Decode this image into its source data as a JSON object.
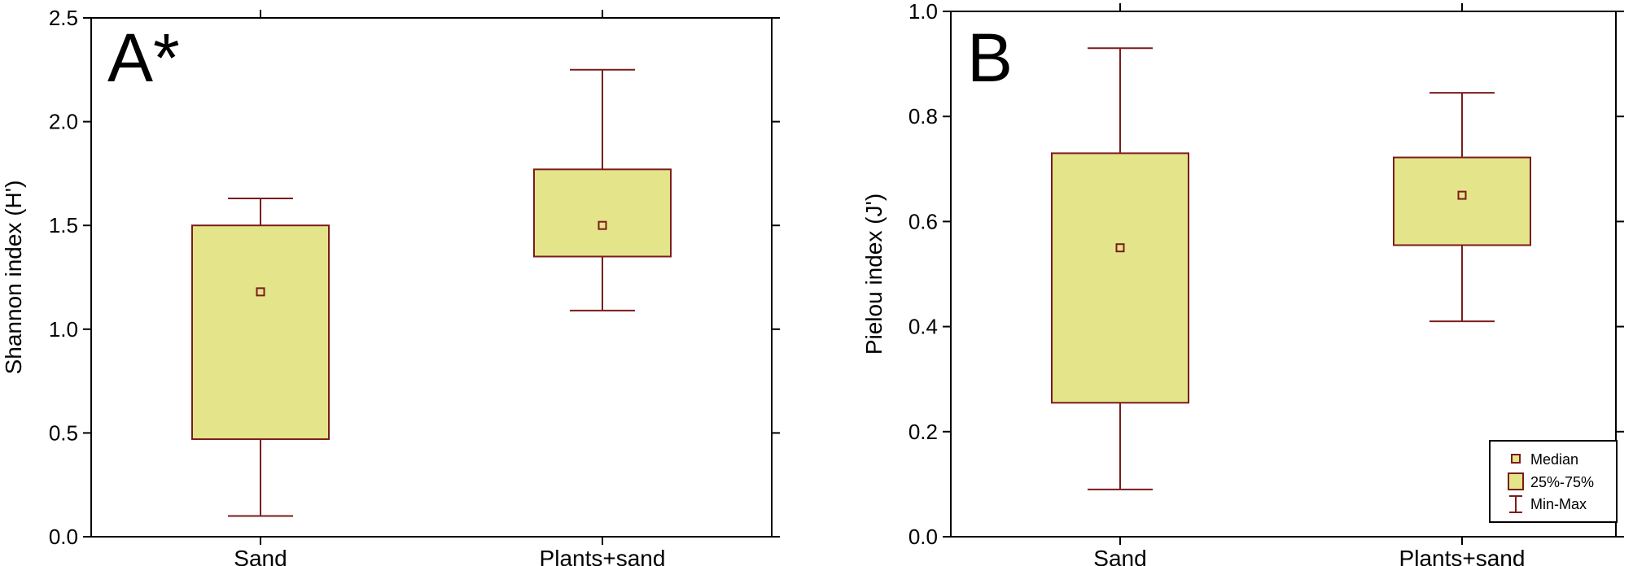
{
  "chart_data": [
    {
      "type": "box",
      "panel_label": "A*",
      "ylabel": "Shannon index (H')",
      "ylim": [
        0,
        2.5
      ],
      "yticks": [
        "0.0",
        "0.5",
        "1.0",
        "1.5",
        "2.0",
        "2.5"
      ],
      "categories": [
        "Sand",
        "Plants+sand"
      ],
      "boxes": [
        {
          "min": 0.1,
          "q1": 0.47,
          "median": 1.18,
          "q3": 1.5,
          "max": 1.63
        },
        {
          "min": 1.09,
          "q1": 1.35,
          "median": 1.5,
          "q3": 1.77,
          "max": 2.25
        }
      ]
    },
    {
      "type": "box",
      "panel_label": "B",
      "ylabel": "Pielou index (J')",
      "ylim": [
        0,
        1.0
      ],
      "yticks": [
        "0.0",
        "0.2",
        "0.4",
        "0.6",
        "0.8",
        "1.0"
      ],
      "categories": [
        "Sand",
        "Plants+sand"
      ],
      "boxes": [
        {
          "min": 0.09,
          "q1": 0.255,
          "median": 0.55,
          "q3": 0.73,
          "max": 0.93
        },
        {
          "min": 0.41,
          "q1": 0.555,
          "median": 0.65,
          "q3": 0.722,
          "max": 0.845
        }
      ],
      "legend": {
        "placement": "bottom-right",
        "entries": [
          "Median",
          "25%-75%",
          "Min-Max"
        ]
      }
    }
  ],
  "colors": {
    "box_fill": "#e4e48a",
    "box_stroke": "#7b1c1c",
    "axis": "#000000"
  }
}
